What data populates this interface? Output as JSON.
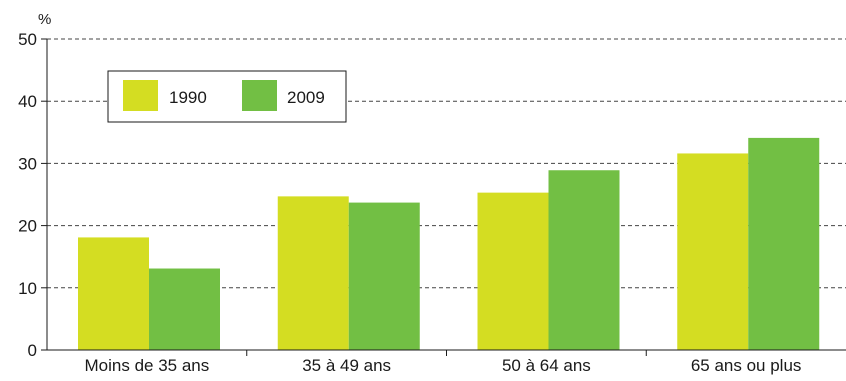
{
  "chart_data": {
    "type": "bar",
    "ylabel": "%",
    "ylim": [
      0,
      50
    ],
    "yticks": [
      0,
      10,
      20,
      30,
      40,
      50
    ],
    "categories": [
      "Moins de 35 ans",
      "35 à 49 ans",
      "50 à 64 ans",
      "65 ans ou plus"
    ],
    "series": [
      {
        "name": "1990",
        "values": [
          18.1,
          24.7,
          25.3,
          31.6
        ],
        "color": "#d4dd22"
      },
      {
        "name": "2009",
        "values": [
          13.1,
          23.7,
          28.9,
          34.1
        ],
        "color": "#72bf44"
      }
    ],
    "grid": true,
    "legend_position": "top-left"
  }
}
